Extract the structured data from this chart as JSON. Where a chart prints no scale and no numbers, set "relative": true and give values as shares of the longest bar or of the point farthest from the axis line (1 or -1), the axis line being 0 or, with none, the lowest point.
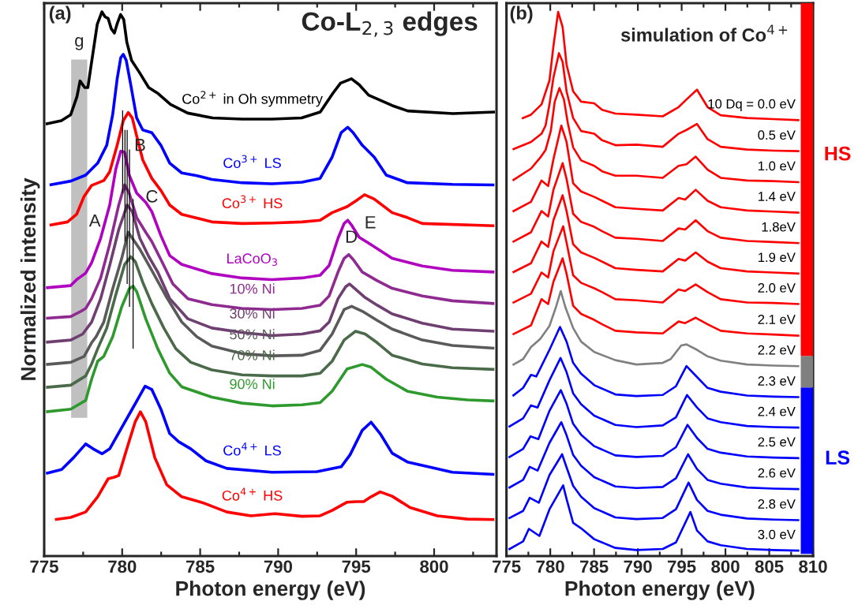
{
  "chart_data": [
    {
      "type": "line",
      "title": "Co-L$_{2,3}$ edges",
      "xlabel": "Photon energy (eV)",
      "ylabel": "Normalized intensity",
      "relative": true,
      "xlim": [
        775,
        804
      ],
      "xticks": [
        775,
        780,
        785,
        790,
        795,
        800
      ],
      "tick_labels": "x",
      "legend": false,
      "grid": false,
      "annotations": [
        "(a)",
        "A",
        "B",
        "C",
        "D",
        "E"
      ],
      "bands": [
        {
          "axis": "x",
          "from": 776.73,
          "to": 777.76,
          "label": "g",
          "color": "#c0c0c0"
        }
      ],
      "series": [
        {
          "name": "Co$^{2+}$ in Oh symmetry",
          "color": "#000000",
          "x": [
            775.1,
            776.1,
            776.7,
            777.1,
            777.3,
            777.6,
            777.8,
            778.0,
            778.4,
            778.7,
            778.9,
            779.1,
            779.3,
            779.5,
            779.7,
            779.9,
            780.1,
            780.3,
            780.6,
            781.1,
            781.7,
            782.3,
            783.1,
            784.2,
            785.8,
            787.7,
            789.6,
            791.5,
            792.7,
            793.5,
            794.0,
            794.7,
            795.2,
            795.8,
            797.3,
            798.3,
            801.2,
            803.9
          ],
          "values": [
            0.794,
            0.8,
            0.811,
            0.844,
            0.873,
            0.861,
            0.861,
            0.9,
            0.977,
            1.0,
            0.991,
            0.988,
            0.969,
            0.961,
            0.98,
            0.995,
            0.986,
            0.944,
            0.911,
            0.889,
            0.861,
            0.85,
            0.83,
            0.814,
            0.805,
            0.803,
            0.803,
            0.805,
            0.816,
            0.85,
            0.869,
            0.877,
            0.866,
            0.847,
            0.828,
            0.818,
            0.813,
            0.816
          ]
        },
        {
          "name": "Co$^{3+}$ LS",
          "color": "#0000ff",
          "x": [
            775.35,
            776.7,
            777.66,
            778.43,
            779.01,
            779.39,
            779.68,
            779.91,
            780.07,
            780.26,
            780.55,
            780.93,
            781.32,
            781.9,
            782.48,
            783.05,
            783.82,
            784.79,
            785.75,
            787.68,
            789.6,
            791.53,
            792.69,
            793.46,
            794.04,
            794.46,
            794.81,
            795.39,
            796.16,
            796.93,
            798.28,
            801.17,
            803.86
          ],
          "values": [
            0.682,
            0.689,
            0.7,
            0.722,
            0.755,
            0.811,
            0.877,
            0.916,
            0.922,
            0.911,
            0.866,
            0.805,
            0.783,
            0.778,
            0.755,
            0.722,
            0.704,
            0.699,
            0.692,
            0.686,
            0.684,
            0.687,
            0.694,
            0.733,
            0.778,
            0.788,
            0.778,
            0.755,
            0.733,
            0.7,
            0.686,
            0.683,
            0.682
          ]
        },
        {
          "name": "Co$^{3+}$ HS",
          "color": "#ff0000",
          "x": [
            775.35,
            776.5,
            777.08,
            777.56,
            778.04,
            778.82,
            779.2,
            779.68,
            780.07,
            780.39,
            780.65,
            780.93,
            781.32,
            781.9,
            782.48,
            783.05,
            783.82,
            785.75,
            787.68,
            789.6,
            791.53,
            792.69,
            793.46,
            794.42,
            795.0,
            795.54,
            796.16,
            797.31,
            798.28,
            799.24,
            803.86
          ],
          "values": [
            0.608,
            0.614,
            0.628,
            0.661,
            0.681,
            0.69,
            0.706,
            0.755,
            0.8,
            0.815,
            0.805,
            0.772,
            0.728,
            0.694,
            0.672,
            0.645,
            0.628,
            0.614,
            0.611,
            0.612,
            0.614,
            0.617,
            0.631,
            0.642,
            0.653,
            0.664,
            0.656,
            0.631,
            0.622,
            0.611,
            0.607
          ]
        },
        {
          "name": "LaCoO$_{3}$",
          "color": "#b000c0",
          "x": [
            775.12,
            776.7,
            777.08,
            777.37,
            777.66,
            778.04,
            778.62,
            779.2,
            779.59,
            779.91,
            780.16,
            780.45,
            780.93,
            781.51,
            781.9,
            782.48,
            783.05,
            783.82,
            785.75,
            787.68,
            789.6,
            791.53,
            792.69,
            793.27,
            793.84,
            794.23,
            794.46,
            794.71,
            795.19,
            795.96,
            797.31,
            799.24,
            801.17,
            803.86
          ],
          "values": [
            0.493,
            0.497,
            0.508,
            0.514,
            0.52,
            0.539,
            0.584,
            0.645,
            0.711,
            0.744,
            0.742,
            0.7,
            0.667,
            0.65,
            0.633,
            0.589,
            0.552,
            0.536,
            0.519,
            0.511,
            0.508,
            0.511,
            0.516,
            0.534,
            0.584,
            0.611,
            0.617,
            0.608,
            0.586,
            0.572,
            0.547,
            0.533,
            0.525,
            0.522
          ]
        },
        {
          "name": "10% Ni",
          "color": "#8e2a90",
          "x": [
            775.12,
            776.7,
            777.37,
            777.66,
            778.04,
            778.62,
            779.2,
            779.78,
            780.16,
            780.45,
            780.93,
            781.51,
            781.9,
            782.48,
            783.25,
            784.21,
            785.75,
            787.68,
            789.6,
            791.53,
            792.69,
            793.27,
            793.84,
            794.23,
            794.52,
            794.81,
            795.39,
            796.35,
            797.31,
            799.24,
            801.17,
            803.86
          ],
          "values": [
            0.437,
            0.44,
            0.45,
            0.455,
            0.473,
            0.511,
            0.573,
            0.645,
            0.682,
            0.667,
            0.622,
            0.595,
            0.578,
            0.545,
            0.5,
            0.473,
            0.462,
            0.455,
            0.453,
            0.455,
            0.461,
            0.478,
            0.522,
            0.547,
            0.554,
            0.545,
            0.522,
            0.506,
            0.492,
            0.478,
            0.469,
            0.464
          ]
        },
        {
          "name": "30% Ni",
          "color": "#6e3f70",
          "x": [
            775.12,
            776.7,
            777.47,
            778.04,
            778.62,
            779.2,
            779.78,
            780.32,
            780.65,
            781.13,
            781.71,
            782.28,
            783.05,
            784.21,
            785.75,
            787.68,
            789.6,
            791.53,
            792.69,
            793.27,
            793.84,
            794.33,
            794.58,
            794.9,
            795.58,
            796.35,
            797.31,
            799.24,
            801.17,
            803.86
          ],
          "values": [
            0.393,
            0.397,
            0.408,
            0.43,
            0.473,
            0.534,
            0.6,
            0.645,
            0.633,
            0.584,
            0.55,
            0.522,
            0.473,
            0.436,
            0.419,
            0.411,
            0.405,
            0.408,
            0.414,
            0.43,
            0.473,
            0.495,
            0.5,
            0.492,
            0.475,
            0.461,
            0.445,
            0.428,
            0.417,
            0.413
          ]
        },
        {
          "name": "50% Ni",
          "color": "#5a5a5a",
          "x": [
            775.12,
            776.7,
            777.56,
            778.04,
            778.33,
            778.82,
            779.39,
            779.97,
            780.39,
            781.13,
            781.9,
            782.86,
            783.82,
            784.79,
            785.75,
            787.68,
            789.6,
            791.53,
            792.69,
            793.46,
            794.23,
            794.71,
            795.39,
            796.35,
            797.31,
            799.24,
            801.17,
            803.86
          ],
          "values": [
            0.352,
            0.356,
            0.367,
            0.392,
            0.403,
            0.43,
            0.491,
            0.547,
            0.595,
            0.564,
            0.525,
            0.475,
            0.43,
            0.403,
            0.386,
            0.372,
            0.368,
            0.369,
            0.378,
            0.408,
            0.453,
            0.459,
            0.45,
            0.433,
            0.417,
            0.397,
            0.387,
            0.382
          ]
        },
        {
          "name": "70% Ni",
          "color": "#4a6a4a",
          "x": [
            775.12,
            776.7,
            777.66,
            778.04,
            778.43,
            779.01,
            779.59,
            780.16,
            780.55,
            780.84,
            781.32,
            781.9,
            782.67,
            783.44,
            784.4,
            785.75,
            787.68,
            789.6,
            791.53,
            792.69,
            793.46,
            794.23,
            794.96,
            795.58,
            796.35,
            797.31,
            799.24,
            801.17,
            803.86
          ],
          "values": [
            0.31,
            0.314,
            0.331,
            0.353,
            0.381,
            0.419,
            0.48,
            0.536,
            0.55,
            0.541,
            0.503,
            0.464,
            0.419,
            0.381,
            0.356,
            0.342,
            0.333,
            0.331,
            0.331,
            0.336,
            0.358,
            0.397,
            0.413,
            0.408,
            0.392,
            0.369,
            0.353,
            0.346,
            0.343
          ]
        },
        {
          "name": "90% Ni",
          "color": "#2e9a2e",
          "x": [
            775.12,
            776.7,
            777.66,
            778.04,
            778.43,
            778.82,
            779.39,
            779.97,
            780.45,
            780.7,
            780.93,
            781.51,
            782.28,
            783.05,
            783.82,
            785.75,
            787.68,
            789.6,
            791.53,
            792.69,
            793.46,
            794.42,
            795.39,
            795.96,
            796.93,
            798.28,
            800.2,
            802.13,
            803.86
          ],
          "values": [
            0.265,
            0.27,
            0.286,
            0.325,
            0.358,
            0.367,
            0.403,
            0.458,
            0.491,
            0.496,
            0.486,
            0.436,
            0.381,
            0.336,
            0.311,
            0.292,
            0.281,
            0.276,
            0.278,
            0.282,
            0.303,
            0.344,
            0.352,
            0.347,
            0.325,
            0.303,
            0.292,
            0.287,
            0.285
          ]
        },
        {
          "name": "Co$^{4+}$ LS",
          "color": "#0000ff",
          "x": [
            775.12,
            776.12,
            776.89,
            777.66,
            778.14,
            778.72,
            779.2,
            779.97,
            780.74,
            781.47,
            781.9,
            782.48,
            783.05,
            783.63,
            784.4,
            785.37,
            786.71,
            789.6,
            792.49,
            794.04,
            794.61,
            795.39,
            795.96,
            796.54,
            797.31,
            798.28,
            799.62,
            801.17,
            803.86
          ],
          "values": [
            0.152,
            0.159,
            0.181,
            0.206,
            0.197,
            0.188,
            0.197,
            0.236,
            0.275,
            0.312,
            0.306,
            0.27,
            0.225,
            0.21,
            0.197,
            0.175,
            0.161,
            0.154,
            0.155,
            0.164,
            0.186,
            0.231,
            0.246,
            0.225,
            0.189,
            0.173,
            0.164,
            0.154,
            0.15
          ]
        },
        {
          "name": "Co$^{4+}$ HS",
          "color": "#ff0000",
          "x": [
            775.69,
            776.7,
            777.66,
            778.43,
            779.1,
            779.49,
            779.78,
            780.36,
            780.84,
            781.17,
            781.51,
            782.09,
            782.86,
            783.82,
            785.17,
            786.71,
            788.26,
            789.8,
            791.53,
            792.69,
            793.46,
            794.42,
            795.0,
            795.48,
            795.96,
            796.54,
            797.31,
            798.46,
            800.2,
            802.13,
            803.86
          ],
          "values": [
            0.067,
            0.071,
            0.081,
            0.109,
            0.142,
            0.145,
            0.148,
            0.203,
            0.247,
            0.265,
            0.247,
            0.181,
            0.131,
            0.109,
            0.098,
            0.081,
            0.074,
            0.078,
            0.073,
            0.074,
            0.084,
            0.099,
            0.1,
            0.1,
            0.109,
            0.118,
            0.11,
            0.089,
            0.074,
            0.068,
            0.067
          ]
        },
        {
          "color": "#000000",
          "x": [
            780.03,
            780.03
          ],
          "values": [
            0.819,
            0.667
          ]
        },
        {
          "color": "#000000",
          "x": [
            780.18,
            780.18
          ],
          "values": [
            0.783,
            0.578
          ]
        },
        {
          "color": "#000000",
          "x": [
            780.32,
            780.32
          ],
          "values": [
            0.783,
            0.5
          ]
        },
        {
          "color": "#000000",
          "x": [
            780.47,
            780.47
          ],
          "values": [
            0.747,
            0.458
          ]
        },
        {
          "color": "#000000",
          "x": [
            780.7,
            780.7
          ],
          "values": [
            0.656,
            0.381
          ]
        }
      ]
    },
    {
      "type": "line",
      "title": "simulation of Co$^{4+}$",
      "xlabel": "Photon energy (eV)",
      "relative": true,
      "xlim": [
        775,
        810
      ],
      "xticks": [
        775,
        780,
        785,
        790,
        795,
        800,
        805,
        810
      ],
      "tick_labels": "x",
      "legend": false,
      "grid": false,
      "annotations": [
        "(b)",
        "HS",
        "LS"
      ],
      "series": [
        {
          "name": "10 Dq = 0.0 eV",
          "color": "#ff0000",
          "x": [
            776.75,
            777.8,
            779.0,
            779.91,
            780.36,
            780.9,
            781.41,
            781.86,
            782.61,
            783.52,
            785.02,
            785.92,
            787.43,
            789.83,
            792.84,
            794.65,
            795.55,
            796.75,
            797.96,
            799.46,
            802.47,
            805.48,
            808.43
          ],
          "values": [
            0.804,
            0.811,
            0.83,
            0.874,
            0.937,
            1.0,
            0.972,
            0.903,
            0.854,
            0.835,
            0.832,
            0.82,
            0.813,
            0.811,
            0.808,
            0.825,
            0.839,
            0.857,
            0.825,
            0.81,
            0.805,
            0.803,
            0.801
          ]
        },
        {
          "name": "0.5 eV",
          "color": "#ff0000",
          "x": [
            775.7,
            777.8,
            779.0,
            779.46,
            779.91,
            780.36,
            780.99,
            781.41,
            781.86,
            782.61,
            783.52,
            785.02,
            785.92,
            787.43,
            789.83,
            792.84,
            794.65,
            795.55,
            796.75,
            797.96,
            799.46,
            802.47,
            805.48,
            808.43
          ],
          "values": [
            0.747,
            0.761,
            0.776,
            0.791,
            0.83,
            0.879,
            0.924,
            0.908,
            0.854,
            0.805,
            0.781,
            0.776,
            0.764,
            0.755,
            0.756,
            0.752,
            0.776,
            0.783,
            0.794,
            0.766,
            0.752,
            0.747,
            0.745,
            0.744
          ]
        },
        {
          "name": "1.0 eV",
          "color": "#ff0000",
          "x": [
            775.7,
            777.8,
            778.85,
            779.46,
            780.06,
            780.51,
            781.05,
            781.56,
            782.01,
            782.61,
            783.52,
            785.02,
            785.92,
            787.43,
            789.83,
            792.84,
            794.65,
            795.55,
            796.6,
            797.96,
            799.46,
            802.47,
            805.48,
            808.43
          ],
          "values": [
            0.69,
            0.712,
            0.732,
            0.746,
            0.781,
            0.835,
            0.86,
            0.839,
            0.795,
            0.751,
            0.727,
            0.717,
            0.707,
            0.699,
            0.699,
            0.695,
            0.717,
            0.72,
            0.734,
            0.71,
            0.695,
            0.69,
            0.689,
            0.687
          ]
        },
        {
          "name": "1.4 eV",
          "color": "#ff0000",
          "x": [
            775.7,
            777.8,
            779.0,
            779.76,
            780.36,
            781.26,
            781.86,
            782.61,
            783.52,
            785.02,
            785.92,
            787.43,
            789.83,
            792.84,
            794.65,
            795.4,
            796.6,
            797.96,
            799.46,
            802.47,
            805.48,
            808.43
          ],
          "values": [
            0.633,
            0.651,
            0.69,
            0.68,
            0.729,
            0.791,
            0.761,
            0.685,
            0.67,
            0.66,
            0.653,
            0.641,
            0.638,
            0.635,
            0.658,
            0.655,
            0.673,
            0.653,
            0.641,
            0.635,
            0.633,
            0.631
          ]
        },
        {
          "name": "1.8eV",
          "color": "#ff0000",
          "x": [
            775.7,
            777.8,
            779.0,
            779.76,
            780.36,
            781.41,
            781.86,
            782.61,
            783.52,
            785.02,
            785.92,
            787.43,
            789.83,
            792.84,
            794.65,
            795.4,
            796.6,
            797.96,
            799.46,
            802.47,
            805.48,
            808.43
          ],
          "values": [
            0.577,
            0.595,
            0.634,
            0.624,
            0.673,
            0.722,
            0.693,
            0.629,
            0.614,
            0.605,
            0.597,
            0.585,
            0.583,
            0.579,
            0.602,
            0.6,
            0.617,
            0.597,
            0.585,
            0.579,
            0.577,
            0.575
          ]
        },
        {
          "name": "1.9 eV",
          "color": "#ff0000",
          "x": [
            775.7,
            777.8,
            779.0,
            779.76,
            780.36,
            781.41,
            781.86,
            782.61,
            783.52,
            785.02,
            785.92,
            787.43,
            789.83,
            792.84,
            794.65,
            795.4,
            796.6,
            797.96,
            799.46,
            802.47,
            805.48,
            808.43
          ],
          "values": [
            0.521,
            0.538,
            0.578,
            0.568,
            0.617,
            0.663,
            0.634,
            0.573,
            0.558,
            0.548,
            0.541,
            0.529,
            0.526,
            0.523,
            0.546,
            0.543,
            0.558,
            0.541,
            0.529,
            0.523,
            0.521,
            0.519
          ]
        },
        {
          "name": "2.0 eV",
          "color": "#ff0000",
          "x": [
            775.7,
            777.8,
            779.0,
            779.76,
            780.36,
            781.47,
            781.86,
            782.61,
            783.52,
            785.02,
            785.92,
            787.43,
            789.83,
            792.84,
            794.65,
            795.4,
            796.6,
            797.96,
            799.46,
            802.47,
            805.48,
            808.43
          ],
          "values": [
            0.465,
            0.482,
            0.521,
            0.512,
            0.56,
            0.606,
            0.576,
            0.516,
            0.502,
            0.492,
            0.485,
            0.472,
            0.47,
            0.466,
            0.49,
            0.487,
            0.499,
            0.485,
            0.472,
            0.466,
            0.465,
            0.463
          ]
        },
        {
          "name": "2.1 eV",
          "color": "#ff0000",
          "x": [
            775.7,
            777.8,
            779.0,
            779.76,
            780.36,
            781.41,
            781.86,
            782.61,
            783.52,
            785.02,
            785.92,
            787.43,
            789.83,
            792.84,
            794.65,
            795.4,
            796.6,
            797.96,
            799.46,
            802.47,
            805.48,
            808.43
          ],
          "values": [
            0.407,
            0.424,
            0.472,
            0.463,
            0.504,
            0.547,
            0.519,
            0.46,
            0.445,
            0.434,
            0.426,
            0.414,
            0.411,
            0.409,
            0.431,
            0.428,
            0.438,
            0.426,
            0.414,
            0.409,
            0.407,
            0.405
          ]
        },
        {
          "name": "2.2 eV",
          "color": "#808080",
          "x": [
            775.7,
            776.9,
            777.8,
            778.85,
            779.91,
            780.66,
            781.2,
            781.71,
            782.61,
            783.52,
            785.02,
            787.43,
            789.83,
            792.84,
            793.75,
            794.95,
            795.55,
            796.75,
            797.96,
            799.46,
            802.47,
            805.48,
            808.43
          ],
          "values": [
            0.351,
            0.362,
            0.384,
            0.399,
            0.423,
            0.458,
            0.487,
            0.458,
            0.419,
            0.394,
            0.375,
            0.36,
            0.352,
            0.355,
            0.362,
            0.387,
            0.389,
            0.379,
            0.367,
            0.359,
            0.352,
            0.35,
            0.349
          ]
        },
        {
          "name": "2.3 eV",
          "color": "#0000ff",
          "x": [
            775.7,
            776.9,
            777.8,
            778.4,
            779.91,
            781.11,
            781.86,
            782.61,
            783.52,
            785.02,
            787.43,
            789.83,
            792.84,
            794.35,
            795.55,
            796.75,
            797.96,
            799.46,
            802.47,
            805.48,
            808.43
          ],
          "values": [
            0.294,
            0.309,
            0.333,
            0.33,
            0.379,
            0.421,
            0.394,
            0.355,
            0.335,
            0.314,
            0.297,
            0.294,
            0.296,
            0.312,
            0.349,
            0.329,
            0.309,
            0.302,
            0.295,
            0.293,
            0.292
          ]
        },
        {
          "name": "2.4 eV",
          "color": "#0000ff",
          "x": [
            775.24,
            776.9,
            777.8,
            778.55,
            779.91,
            781.17,
            781.86,
            782.61,
            783.52,
            785.02,
            787.43,
            789.83,
            792.84,
            794.35,
            795.61,
            796.75,
            797.96,
            799.46,
            802.47,
            805.48,
            808.43
          ],
          "values": [
            0.237,
            0.253,
            0.277,
            0.273,
            0.323,
            0.364,
            0.338,
            0.299,
            0.279,
            0.258,
            0.241,
            0.237,
            0.24,
            0.255,
            0.296,
            0.273,
            0.253,
            0.246,
            0.239,
            0.237,
            0.236
          ]
        },
        {
          "name": "2.5 eV",
          "color": "#0000ff",
          "x": [
            775.24,
            776.9,
            777.74,
            778.64,
            779.91,
            781.2,
            781.86,
            782.61,
            783.52,
            785.02,
            787.43,
            789.83,
            792.84,
            794.35,
            795.67,
            796.75,
            797.96,
            799.46,
            802.47,
            805.48,
            808.43
          ],
          "values": [
            0.181,
            0.197,
            0.22,
            0.215,
            0.267,
            0.305,
            0.28,
            0.243,
            0.223,
            0.202,
            0.185,
            0.182,
            0.184,
            0.2,
            0.241,
            0.217,
            0.197,
            0.19,
            0.183,
            0.181,
            0.18
          ]
        },
        {
          "name": "2.6 eV",
          "color": "#0000ff",
          "x": [
            775.24,
            776.9,
            777.65,
            778.55,
            779.91,
            781.26,
            781.86,
            782.61,
            783.52,
            785.02,
            787.43,
            789.83,
            792.84,
            794.35,
            795.73,
            796.75,
            797.96,
            799.46,
            802.47,
            805.48,
            808.43
          ],
          "values": [
            0.125,
            0.14,
            0.164,
            0.157,
            0.208,
            0.246,
            0.222,
            0.186,
            0.166,
            0.145,
            0.128,
            0.125,
            0.127,
            0.143,
            0.187,
            0.16,
            0.14,
            0.133,
            0.126,
            0.124,
            0.123
          ]
        },
        {
          "name": "2.8 eV",
          "color": "#0000ff",
          "x": [
            775.24,
            776.9,
            777.65,
            778.7,
            779.91,
            781.35,
            781.86,
            782.61,
            783.52,
            785.02,
            787.43,
            789.83,
            792.84,
            794.35,
            795.79,
            796.75,
            797.96,
            799.46,
            802.47,
            805.48,
            808.43
          ],
          "values": [
            0.069,
            0.083,
            0.107,
            0.098,
            0.149,
            0.187,
            0.163,
            0.129,
            0.109,
            0.088,
            0.071,
            0.068,
            0.07,
            0.086,
            0.135,
            0.103,
            0.083,
            0.076,
            0.069,
            0.067,
            0.066
          ]
        },
        {
          "name": "3.0 eV",
          "color": "#0000ff",
          "x": [
            775.24,
            776.9,
            777.56,
            778.76,
            779.91,
            781.47,
            781.86,
            782.61,
            783.52,
            785.02,
            787.43,
            789.83,
            792.84,
            794.35,
            796.0,
            796.75,
            797.96,
            799.46,
            802.47,
            805.48,
            808.43
          ],
          "values": [
            0.012,
            0.027,
            0.05,
            0.037,
            0.086,
            0.13,
            0.105,
            0.061,
            0.051,
            0.031,
            0.015,
            0.011,
            0.013,
            0.025,
            0.081,
            0.047,
            0.027,
            0.02,
            0.013,
            0.011,
            0.01
          ]
        }
      ]
    }
  ]
}
